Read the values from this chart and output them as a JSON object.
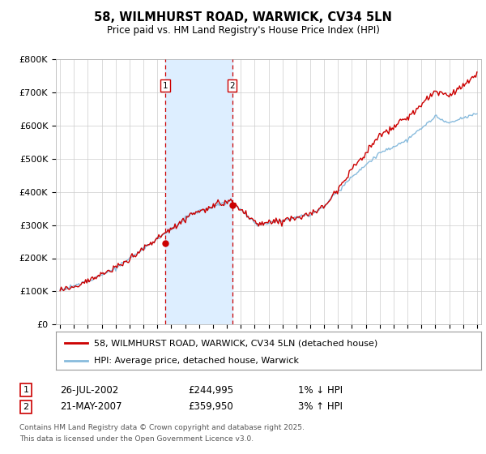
{
  "title": "58, WILMHURST ROAD, WARWICK, CV34 5LN",
  "subtitle": "Price paid vs. HM Land Registry's House Price Index (HPI)",
  "ylim": [
    0,
    800000
  ],
  "yticks": [
    0,
    100000,
    200000,
    300000,
    400000,
    500000,
    600000,
    700000,
    800000
  ],
  "ytick_labels": [
    "£0",
    "£100K",
    "£200K",
    "£300K",
    "£400K",
    "£500K",
    "£600K",
    "£700K",
    "£800K"
  ],
  "xlim_start": 1994.7,
  "xlim_end": 2025.3,
  "transaction1_date": 2002.56,
  "transaction1_price": 244995,
  "transaction1_label": "1",
  "transaction2_date": 2007.38,
  "transaction2_price": 359950,
  "transaction2_label": "2",
  "house_line_color": "#cc0000",
  "hpi_line_color": "#88bbdd",
  "shade_color": "#ddeeff",
  "vline_color": "#cc0000",
  "legend_house_label": "58, WILMHURST ROAD, WARWICK, CV34 5LN (detached house)",
  "legend_hpi_label": "HPI: Average price, detached house, Warwick",
  "footer_line1": "Contains HM Land Registry data © Crown copyright and database right 2025.",
  "footer_line2": "This data is licensed under the Open Government Licence v3.0.",
  "table_row1_num": "1",
  "table_row1_date": "26-JUL-2002",
  "table_row1_price": "£244,995",
  "table_row1_hpi": "1% ↓ HPI",
  "table_row2_num": "2",
  "table_row2_date": "21-MAY-2007",
  "table_row2_price": "£359,950",
  "table_row2_hpi": "3% ↑ HPI",
  "background_color": "#ffffff",
  "grid_color": "#cccccc"
}
